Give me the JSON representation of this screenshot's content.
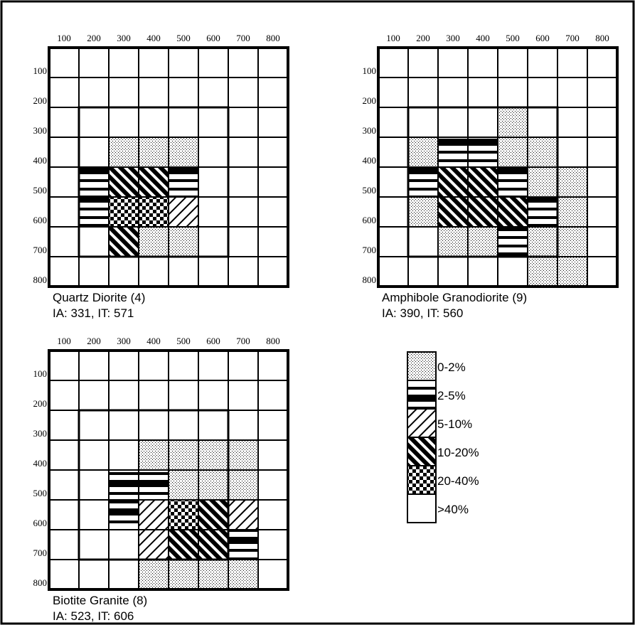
{
  "chart_data": [
    {
      "type": "heatmap",
      "title": "Quartz Diorite (4)",
      "subtitle": "IA: 331, IT: 571",
      "x_ticks": [
        "100",
        "200",
        "300",
        "400",
        "500",
        "600",
        "700",
        "800"
      ],
      "y_ticks": [
        "100",
        "200",
        "300",
        "400",
        "500",
        "600",
        "700",
        "800"
      ],
      "inner_box": {
        "col_from": 1,
        "row_from": 2,
        "col_to": 6,
        "row_to": 7
      },
      "cells": [
        [
          0,
          0,
          0,
          0,
          0,
          0,
          0,
          0
        ],
        [
          0,
          0,
          0,
          0,
          0,
          0,
          0,
          0
        ],
        [
          0,
          0,
          0,
          0,
          0,
          0,
          0,
          0
        ],
        [
          0,
          0,
          1,
          1,
          1,
          0,
          0,
          0
        ],
        [
          0,
          2,
          4,
          4,
          2,
          0,
          0,
          0
        ],
        [
          0,
          2,
          5,
          5,
          3,
          0,
          0,
          0
        ],
        [
          0,
          0,
          4,
          1,
          1,
          0,
          0,
          0
        ],
        [
          0,
          0,
          0,
          0,
          0,
          0,
          0,
          0
        ]
      ]
    },
    {
      "type": "heatmap",
      "title": "Amphibole Granodiorite (9)",
      "subtitle": "IA: 390, IT: 560",
      "x_ticks": [
        "100",
        "200",
        "300",
        "400",
        "500",
        "600",
        "700",
        "800"
      ],
      "y_ticks": [
        "100",
        "200",
        "300",
        "400",
        "500",
        "600",
        "700",
        "800"
      ],
      "inner_box": {
        "col_from": 1,
        "row_from": 2,
        "col_to": 6,
        "row_to": 7
      },
      "cells": [
        [
          0,
          0,
          0,
          0,
          0,
          0,
          0,
          0
        ],
        [
          0,
          0,
          0,
          0,
          0,
          0,
          0,
          0
        ],
        [
          0,
          0,
          0,
          0,
          1,
          0,
          0,
          0
        ],
        [
          0,
          1,
          2,
          2,
          1,
          1,
          0,
          0
        ],
        [
          0,
          2,
          4,
          4,
          2,
          1,
          1,
          0
        ],
        [
          0,
          1,
          4,
          4,
          4,
          2,
          1,
          0
        ],
        [
          0,
          0,
          1,
          1,
          2,
          1,
          1,
          0
        ],
        [
          0,
          0,
          0,
          0,
          0,
          1,
          1,
          0
        ]
      ]
    },
    {
      "type": "heatmap",
      "title": "Biotite Granite (8)",
      "subtitle": "IA: 523, IT: 606",
      "x_ticks": [
        "100",
        "200",
        "300",
        "400",
        "500",
        "600",
        "700",
        "800"
      ],
      "y_ticks": [
        "100",
        "200",
        "300",
        "400",
        "500",
        "600",
        "700",
        "800"
      ],
      "inner_box": {
        "col_from": 1,
        "row_from": 2,
        "col_to": 6,
        "row_to": 7
      },
      "cells": [
        [
          0,
          0,
          0,
          0,
          0,
          0,
          0,
          0
        ],
        [
          0,
          0,
          0,
          0,
          0,
          0,
          0,
          0
        ],
        [
          0,
          0,
          0,
          0,
          0,
          0,
          0,
          0
        ],
        [
          0,
          0,
          0,
          1,
          1,
          1,
          1,
          0
        ],
        [
          0,
          0,
          2,
          2,
          1,
          1,
          1,
          0
        ],
        [
          0,
          0,
          2,
          3,
          5,
          4,
          3,
          0
        ],
        [
          0,
          0,
          0,
          3,
          4,
          4,
          2,
          0
        ],
        [
          0,
          0,
          0,
          1,
          1,
          1,
          1,
          0
        ]
      ]
    }
  ],
  "legend": {
    "items": [
      {
        "label": "0-2%",
        "pattern": "dots"
      },
      {
        "label": "2-5%",
        "pattern": "hstripes"
      },
      {
        "label": "5-10%",
        "pattern": "diag-thin"
      },
      {
        "label": "10-20%",
        "pattern": "diag-thick"
      },
      {
        "label": "20-40%",
        "pattern": "checker"
      },
      {
        "label": ">40%",
        "pattern": "blank"
      }
    ]
  }
}
